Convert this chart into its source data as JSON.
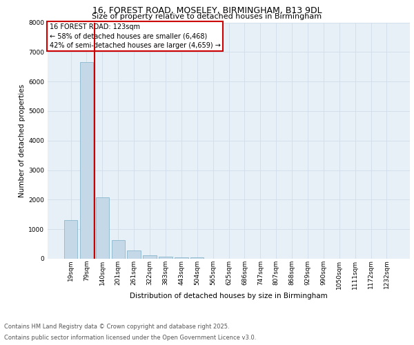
{
  "title_line1": "16, FOREST ROAD, MOSELEY, BIRMINGHAM, B13 9DL",
  "title_line2": "Size of property relative to detached houses in Birmingham",
  "xlabel": "Distribution of detached houses by size in Birmingham",
  "ylabel": "Number of detached properties",
  "categories": [
    "19sqm",
    "79sqm",
    "140sqm",
    "201sqm",
    "261sqm",
    "322sqm",
    "383sqm",
    "443sqm",
    "504sqm",
    "565sqm",
    "625sqm",
    "686sqm",
    "747sqm",
    "807sqm",
    "868sqm",
    "929sqm",
    "990sqm",
    "1050sqm",
    "1111sqm",
    "1172sqm",
    "1232sqm"
  ],
  "values": [
    1300,
    6650,
    2080,
    620,
    290,
    120,
    70,
    40,
    50,
    0,
    0,
    0,
    0,
    0,
    0,
    0,
    0,
    0,
    0,
    0,
    0
  ],
  "bar_color": "#c5d8e8",
  "bar_edge_color": "#7aaec8",
  "vline_color": "#cc0000",
  "annotation_title": "16 FOREST ROAD: 123sqm",
  "annotation_line1": "← 58% of detached houses are smaller (6,468)",
  "annotation_line2": "42% of semi-detached houses are larger (4,659) →",
  "annotation_box_color": "#ffffff",
  "annotation_box_edge_color": "#cc0000",
  "ylim": [
    0,
    8000
  ],
  "yticks": [
    0,
    1000,
    2000,
    3000,
    4000,
    5000,
    6000,
    7000,
    8000
  ],
  "grid_color": "#d0dce8",
  "bg_color": "#e8f0f7",
  "footer_line1": "Contains HM Land Registry data © Crown copyright and database right 2025.",
  "footer_line2": "Contains public sector information licensed under the Open Government Licence v3.0.",
  "title_fontsize": 9,
  "subtitle_fontsize": 8,
  "axis_label_fontsize": 7.5,
  "tick_fontsize": 6.5,
  "annot_fontsize": 7,
  "footer_fontsize": 6
}
